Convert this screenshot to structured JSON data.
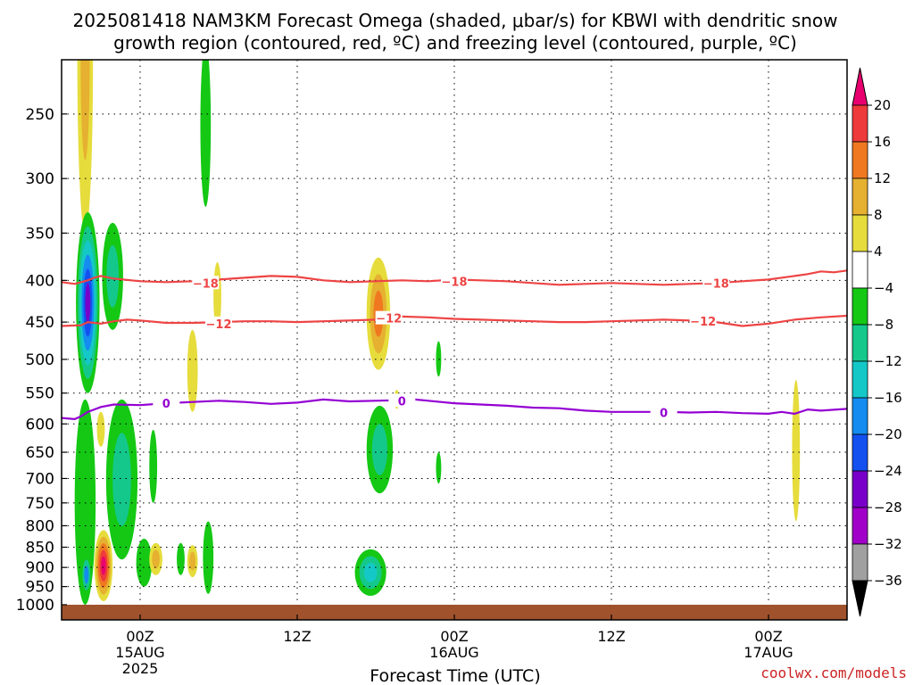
{
  "chart_data": {
    "type": "heatmap",
    "title_line1": "2025081418 NAM3KM Forecast Omega (shaded, μbar/s) for KBWI with dendritic snow",
    "title_line2": "growth region (contoured, red, ºC) and freezing level (contoured, purple, ºC)",
    "xlabel": "Forecast Time (UTC)",
    "ylabel": "",
    "y_scale": "log",
    "y_range": [
      1000,
      200
    ],
    "y_ticks": [
      250,
      300,
      350,
      400,
      450,
      500,
      550,
      600,
      650,
      700,
      750,
      800,
      850,
      900,
      950,
      1000
    ],
    "x_range_hours": [
      -6,
      54
    ],
    "x_ticks": [
      {
        "hour": 0,
        "label": "00Z",
        "sub1": "15AUG",
        "sub2": "2025"
      },
      {
        "hour": 12,
        "label": "12Z",
        "sub1": "",
        "sub2": ""
      },
      {
        "hour": 24,
        "label": "00Z",
        "sub1": "16AUG",
        "sub2": ""
      },
      {
        "hour": 36,
        "label": "12Z",
        "sub1": "",
        "sub2": ""
      },
      {
        "hour": 48,
        "label": "00Z",
        "sub1": "17AUG",
        "sub2": ""
      }
    ],
    "grid": true,
    "colorbar": {
      "labels": [
        "20",
        "16",
        "12",
        "8",
        "4",
        "−4",
        "−8",
        "−12",
        "−16",
        "−20",
        "−24",
        "−28",
        "−32",
        "−36"
      ],
      "colors": [
        "#e8006e",
        "#ee3a3a",
        "#f07820",
        "#e6b030",
        "#e6dc3c",
        "#ffffff",
        "#14c814",
        "#14c88c",
        "#14c8c8",
        "#148cf0",
        "#1450f0",
        "#7800c8",
        "#a000c8",
        "#a0a0a0"
      ],
      "low_end_color": "#000000"
    },
    "contours": [
      {
        "name": "-18",
        "color": "#ee4444",
        "label": "−18",
        "points": [
          [
            -6,
            402
          ],
          [
            -5,
            404
          ],
          [
            -4,
            400
          ],
          [
            -3.5,
            397
          ],
          [
            -3,
            395
          ],
          [
            -2,
            398
          ],
          [
            0,
            401
          ],
          [
            2,
            402
          ],
          [
            4,
            401
          ],
          [
            6,
            399
          ],
          [
            8,
            397
          ],
          [
            10,
            395
          ],
          [
            12,
            396
          ],
          [
            14,
            400
          ],
          [
            16,
            402
          ],
          [
            18,
            401
          ],
          [
            20,
            400
          ],
          [
            22,
            401
          ],
          [
            24,
            399
          ],
          [
            26,
            400
          ],
          [
            28,
            401
          ],
          [
            30,
            403
          ],
          [
            32,
            405
          ],
          [
            34,
            404
          ],
          [
            36,
            403
          ],
          [
            38,
            404
          ],
          [
            40,
            405
          ],
          [
            42,
            404
          ],
          [
            44,
            403
          ],
          [
            46,
            401
          ],
          [
            48,
            399
          ],
          [
            50,
            395
          ],
          [
            51,
            393
          ],
          [
            52,
            390
          ],
          [
            53,
            391
          ],
          [
            54,
            389
          ]
        ],
        "labels_at": [
          [
            5,
            403
          ],
          [
            24,
            401
          ],
          [
            44,
            403
          ]
        ]
      },
      {
        "name": "-12",
        "color": "#ee4444",
        "label": "−12",
        "points": [
          [
            -6,
            455
          ],
          [
            -4.5,
            454
          ],
          [
            -4,
            450
          ],
          [
            -3,
            452
          ],
          [
            -2,
            449
          ],
          [
            -1,
            447
          ],
          [
            0,
            448
          ],
          [
            2,
            451
          ],
          [
            4,
            451
          ],
          [
            6,
            450
          ],
          [
            8,
            449
          ],
          [
            10,
            449
          ],
          [
            12,
            450
          ],
          [
            14,
            449
          ],
          [
            16,
            448
          ],
          [
            18,
            447
          ],
          [
            19,
            445
          ],
          [
            20,
            443
          ],
          [
            22,
            444
          ],
          [
            24,
            446
          ],
          [
            26,
            447
          ],
          [
            28,
            448
          ],
          [
            30,
            449
          ],
          [
            32,
            450
          ],
          [
            34,
            450
          ],
          [
            36,
            449
          ],
          [
            38,
            448
          ],
          [
            40,
            447
          ],
          [
            42,
            448
          ],
          [
            44,
            450
          ],
          [
            46,
            455
          ],
          [
            48,
            452
          ],
          [
            50,
            447
          ],
          [
            52,
            444
          ],
          [
            54,
            442
          ]
        ],
        "labels_at": [
          [
            6,
            452
          ],
          [
            19,
            445
          ],
          [
            43,
            449
          ]
        ]
      },
      {
        "name": "0",
        "color": "#9400d3",
        "label": "0",
        "points": [
          [
            -6,
            590
          ],
          [
            -5,
            592
          ],
          [
            -4.5,
            587
          ],
          [
            -4,
            580
          ],
          [
            -3,
            572
          ],
          [
            -2,
            568
          ],
          [
            0,
            569
          ],
          [
            2,
            566
          ],
          [
            4,
            564
          ],
          [
            6,
            562
          ],
          [
            8,
            564
          ],
          [
            10,
            567
          ],
          [
            12,
            565
          ],
          [
            14,
            560
          ],
          [
            16,
            563
          ],
          [
            18,
            562
          ],
          [
            20,
            561
          ],
          [
            21,
            560
          ],
          [
            22,
            562
          ],
          [
            24,
            566
          ],
          [
            26,
            568
          ],
          [
            28,
            570
          ],
          [
            30,
            573
          ],
          [
            32,
            574
          ],
          [
            34,
            578
          ],
          [
            36,
            580
          ],
          [
            38,
            580
          ],
          [
            40,
            580
          ],
          [
            42,
            581
          ],
          [
            44,
            580
          ],
          [
            46,
            582
          ],
          [
            48,
            583
          ],
          [
            49,
            580
          ],
          [
            50,
            583
          ],
          [
            51,
            576
          ],
          [
            52,
            578
          ],
          [
            54,
            575
          ]
        ],
        "labels_at": [
          [
            2,
            566
          ],
          [
            20,
            562
          ],
          [
            40,
            581
          ]
        ]
      }
    ],
    "blobs": [
      {
        "name": "upper-yellow-top",
        "center": [
          -4.2,
          240
        ],
        "rx_h": 0.6,
        "ry_p": 110,
        "levels": [
          "#e6dc3c",
          "#e6b030"
        ]
      },
      {
        "name": "upper-green-sliver",
        "center": [
          5.0,
          265
        ],
        "rx_h": 0.4,
        "ry_p": 60,
        "levels": [
          "#14c814"
        ]
      },
      {
        "name": "main-updraft",
        "center": [
          -4.0,
          440
        ],
        "rx_h": 0.9,
        "ry_p": 110,
        "levels": [
          "#14c814",
          "#14c88c",
          "#14c8c8",
          "#148cf0",
          "#1450f0",
          "#7800c8"
        ]
      },
      {
        "name": "main-updraft-shoulder",
        "center": [
          -2.1,
          400
        ],
        "rx_h": 0.8,
        "ry_p": 60,
        "levels": [
          "#14c814",
          "#14c88c"
        ]
      },
      {
        "name": "low-green-column",
        "center": [
          -4.2,
          780
        ],
        "rx_h": 0.8,
        "ry_p": 220,
        "levels": [
          "#14c814"
        ]
      },
      {
        "name": "low-cyan-core",
        "center": [
          -4.1,
          920
        ],
        "rx_h": 0.3,
        "ry_p": 40,
        "levels": [
          "#14c88c",
          "#148cf0"
        ]
      },
      {
        "name": "low-green-right",
        "center": [
          -1.4,
          720
        ],
        "rx_h": 1.2,
        "ry_p": 160,
        "levels": [
          "#14c814",
          "#14c88c"
        ]
      },
      {
        "name": "low-green-foot",
        "center": [
          0.3,
          890
        ],
        "rx_h": 0.6,
        "ry_p": 60,
        "levels": [
          "#14c814"
        ]
      },
      {
        "name": "low-green-mid",
        "center": [
          1.0,
          680
        ],
        "rx_h": 0.3,
        "ry_p": 70,
        "levels": [
          "#14c814"
        ]
      },
      {
        "name": "surface-downdraft",
        "center": [
          -2.8,
          900
        ],
        "rx_h": 0.7,
        "ry_p": 90,
        "levels": [
          "#e6dc3c",
          "#e6b030",
          "#f07820",
          "#ee3a3a",
          "#e8006e"
        ]
      },
      {
        "name": "small-yellow-a",
        "center": [
          1.2,
          880
        ],
        "rx_h": 0.5,
        "ry_p": 40,
        "levels": [
          "#e6dc3c",
          "#e6b030"
        ]
      },
      {
        "name": "small-green-a",
        "center": [
          3.1,
          880
        ],
        "rx_h": 0.3,
        "ry_p": 40,
        "levels": [
          "#14c814"
        ]
      },
      {
        "name": "small-yellow-b",
        "center": [
          4.0,
          885
        ],
        "rx_h": 0.4,
        "ry_p": 40,
        "levels": [
          "#e6dc3c",
          "#e6b030"
        ]
      },
      {
        "name": "small-green-b",
        "center": [
          5.2,
          880
        ],
        "rx_h": 0.4,
        "ry_p": 90,
        "levels": [
          "#14c814"
        ]
      },
      {
        "name": "mid-yellow-a",
        "center": [
          4.0,
          520
        ],
        "rx_h": 0.4,
        "ry_p": 60,
        "levels": [
          "#e6dc3c"
        ]
      },
      {
        "name": "mid-yellow-b",
        "center": [
          5.9,
          420
        ],
        "rx_h": 0.3,
        "ry_p": 40,
        "levels": [
          "#e6dc3c"
        ]
      },
      {
        "name": "mid-yellow-c",
        "center": [
          -3.0,
          610
        ],
        "rx_h": 0.3,
        "ry_p": 30,
        "levels": [
          "#e6dc3c"
        ]
      },
      {
        "name": "midday-yellow",
        "center": [
          18.2,
          445
        ],
        "rx_h": 0.9,
        "ry_p": 70,
        "levels": [
          "#e6dc3c",
          "#e6b030",
          "#f07820"
        ]
      },
      {
        "name": "midday-green",
        "center": [
          18.3,
          650
        ],
        "rx_h": 1.0,
        "ry_p": 80,
        "levels": [
          "#14c814",
          "#14c88c"
        ]
      },
      {
        "name": "midday-surface-green",
        "center": [
          17.6,
          915
        ],
        "rx_h": 1.2,
        "ry_p": 60,
        "levels": [
          "#14c814",
          "#14c88c",
          "#14c8c8"
        ]
      },
      {
        "name": "green-sliver-a",
        "center": [
          22.8,
          500
        ],
        "rx_h": 0.2,
        "ry_p": 25,
        "levels": [
          "#14c814"
        ]
      },
      {
        "name": "green-sliver-b",
        "center": [
          22.8,
          680
        ],
        "rx_h": 0.2,
        "ry_p": 30,
        "levels": [
          "#14c814"
        ]
      },
      {
        "name": "yellow-far-right",
        "center": [
          50.1,
          660
        ],
        "rx_h": 0.3,
        "ry_p": 130,
        "levels": [
          "#e6dc3c"
        ]
      },
      {
        "name": "yellow-sliver-mid",
        "center": [
          19.6,
          560
        ],
        "rx_h": 0.2,
        "ry_p": 15,
        "levels": [
          "#e6dc3c"
        ]
      }
    ]
  },
  "credit": "coolwx.com/models"
}
